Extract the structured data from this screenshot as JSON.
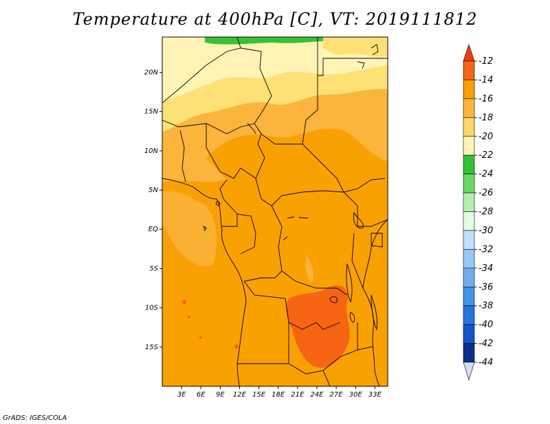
{
  "title": "Temperature at 400hPa [C], VT: 2019111812",
  "credit": "GrADS: IGES/COLA",
  "map": {
    "lat_labels": [
      "20N",
      "15N",
      "10N",
      "5N",
      "EQ",
      "5S",
      "10S",
      "15S"
    ],
    "lat_values": [
      20,
      15,
      10,
      5,
      0,
      -5,
      -10,
      -15
    ],
    "lon_labels": [
      "3E",
      "6E",
      "9E",
      "12E",
      "15E",
      "18E",
      "21E",
      "24E",
      "27E",
      "30E",
      "33E"
    ],
    "lon_values": [
      3,
      6,
      9,
      12,
      15,
      18,
      21,
      24,
      27,
      30,
      33
    ],
    "lon_range": [
      0,
      35
    ],
    "lat_range": [
      -20,
      24.5
    ],
    "colors": {
      "base_orange": "#f9a003",
      "light_orange": "#fbb43c",
      "pale_yellow": "#fde177",
      "cream": "#fff4b5",
      "green": "#36c234",
      "red_orange": "#f66414"
    }
  },
  "colorbar": {
    "labels": [
      "-12",
      "-14",
      "-16",
      "-18",
      "-20",
      "-22",
      "-24",
      "-26",
      "-28",
      "-30",
      "-32",
      "-34",
      "-36",
      "-38",
      "-40",
      "-42",
      "-44"
    ],
    "colors": [
      "#f66414",
      "#f9a003",
      "#fbb43c",
      "#fdd56b",
      "#fff4b5",
      "#36c234",
      "#6ad868",
      "#b1efb1",
      "#e5fbe5",
      "#bfe0fa",
      "#96c8f6",
      "#6eaef1",
      "#4591ec",
      "#2474e1",
      "#1256c9",
      "#0a2f8c"
    ],
    "arrow_top_color": "#f23a0a",
    "arrow_bottom_color": "#d7dcf5"
  }
}
